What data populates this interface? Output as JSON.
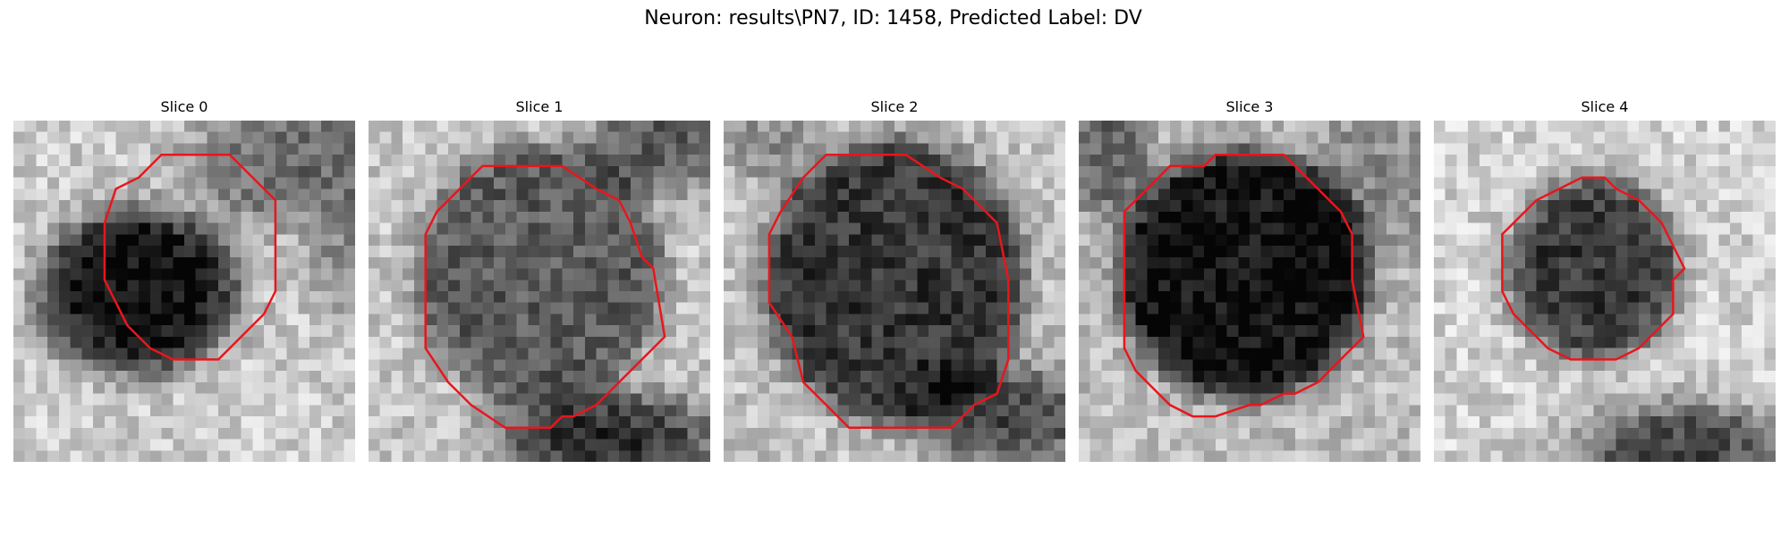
{
  "figure": {
    "title": "Neuron: results\\PN7, ID: 1458, Predicted Label: DV"
  },
  "slices": [
    {
      "title": "Slice 0"
    },
    {
      "title": "Slice 1"
    },
    {
      "title": "Slice 2"
    },
    {
      "title": "Slice 3"
    },
    {
      "title": "Slice 4"
    }
  ],
  "colors": {
    "contour": "#e8161c",
    "colormap": "gray"
  }
}
